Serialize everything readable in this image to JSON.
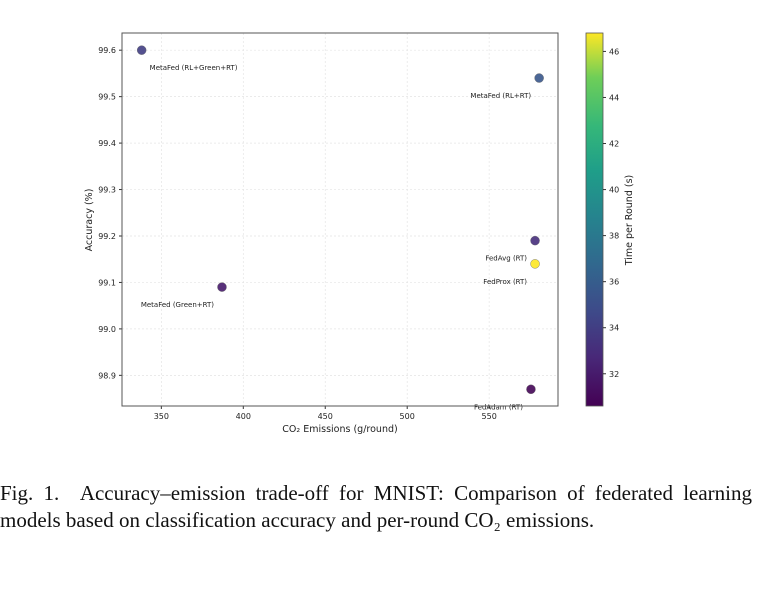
{
  "chart_data": {
    "type": "scatter",
    "xlabel": "CO₂ Emissions (g/round)",
    "ylabel": "Accuracy (%)",
    "xlim": [
      326,
      592
    ],
    "ylim": [
      98.834,
      99.637
    ],
    "xticks": [
      350,
      400,
      450,
      500,
      550
    ],
    "yticks": [
      98.9,
      99.0,
      99.1,
      99.2,
      99.3,
      99.4,
      99.5,
      99.6
    ],
    "grid": true,
    "colorbar": {
      "label": "Time per Round (s)",
      "colormap": "viridis",
      "range": [
        30.6,
        46.8
      ],
      "ticks": [
        32,
        34,
        36,
        38,
        40,
        42,
        44,
        46
      ]
    },
    "points": [
      {
        "label": "MetaFed (RL+Green+RT)",
        "x": 338,
        "y": 99.6,
        "time": 34.0,
        "anchor": "below-right"
      },
      {
        "label": "MetaFed (RL+RT)",
        "x": 580.5,
        "y": 99.54,
        "time": 35.5,
        "anchor": "below-left"
      },
      {
        "label": "FedAvg (RT)",
        "x": 578,
        "y": 99.19,
        "time": 33.0,
        "anchor": "below-left"
      },
      {
        "label": "FedProx (RT)",
        "x": 578,
        "y": 99.14,
        "time": 46.8,
        "anchor": "below-left"
      },
      {
        "label": "MetaFed (Green+RT)",
        "x": 387,
        "y": 99.09,
        "time": 32.0,
        "anchor": "below-left2"
      },
      {
        "label": "FedAdam (RT)",
        "x": 575.5,
        "y": 98.87,
        "time": 30.8,
        "anchor": "below-left"
      }
    ]
  },
  "caption": {
    "label": "Fig. 1.",
    "text": "Accuracy–emission trade-off for MNIST: Comparison of federated learning models based on classification accuracy and per-round CO₂ emissions."
  }
}
